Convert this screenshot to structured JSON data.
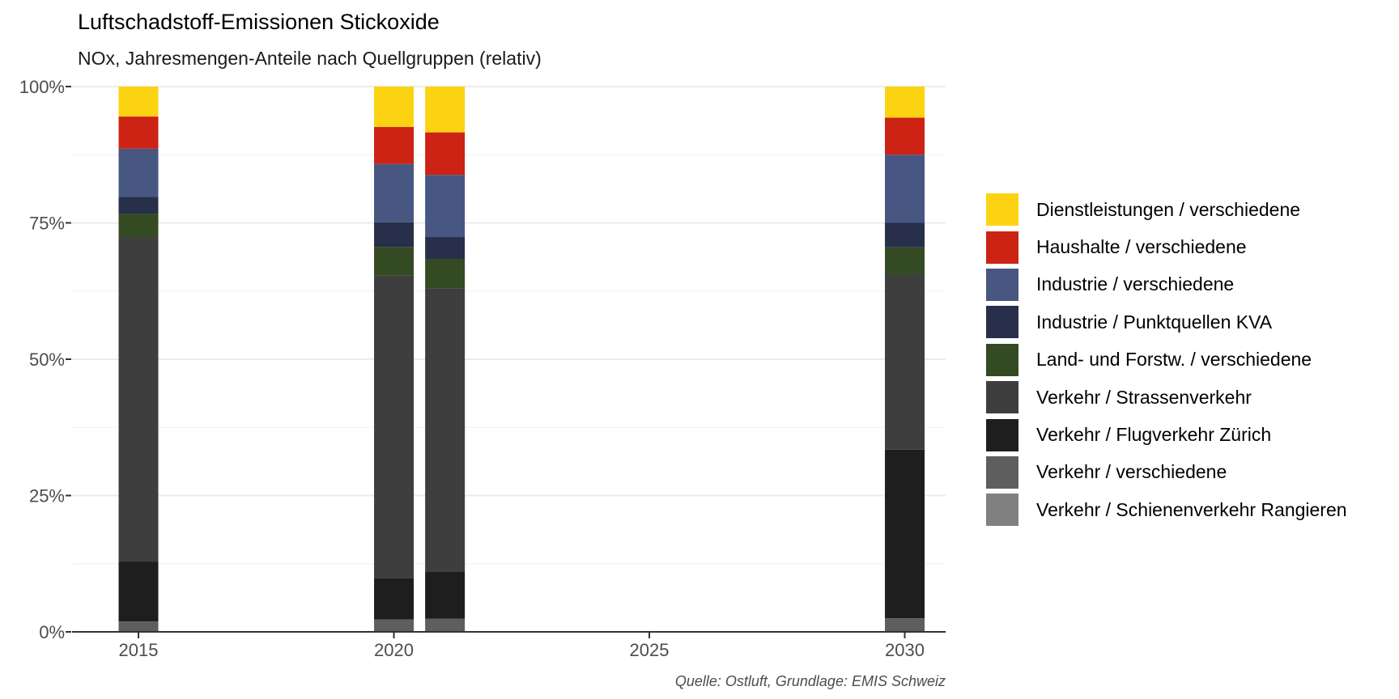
{
  "title": "Luftschadstoff-Emissionen Stickoxide",
  "subtitle": "NOx, Jahresmengen-Anteile nach Quellgruppen (relativ)",
  "caption": "Quelle: Ostluft, Grundlage: EMIS Schweiz",
  "chart_data": {
    "type": "bar",
    "stacked": true,
    "title": "Luftschadstoff-Emissionen Stickoxide",
    "subtitle": "NOx, Jahresmengen-Anteile nach Quellgruppen (relativ)",
    "xlabel": "",
    "ylabel": "",
    "x": [
      2015,
      2020,
      2021,
      2030
    ],
    "xlim": [
      2013.7,
      2030.8
    ],
    "x_ticks": [
      "2015",
      "2020",
      "2025",
      "2030"
    ],
    "x_tick_values": [
      2015,
      2020,
      2025,
      2030
    ],
    "ylim": [
      0,
      100
    ],
    "y_ticks": [
      "0%",
      "25%",
      "50%",
      "75%",
      "100%"
    ],
    "y_tick_values": [
      0,
      25,
      50,
      75,
      100
    ],
    "grid": true,
    "legend_position": "right",
    "series": [
      {
        "name": "Verkehr / Schienenverkehr Rangieren",
        "color": "#808080",
        "values": [
          0.1,
          0.1,
          0.1,
          0.1
        ]
      },
      {
        "name": "Verkehr / verschiedene",
        "color": "#5e5e5e",
        "values": [
          1.8,
          2.2,
          2.3,
          2.4
        ]
      },
      {
        "name": "Verkehr / Flugverkehr Zürich",
        "color": "#1e1e1e",
        "values": [
          11.0,
          7.5,
          8.7,
          30.9
        ]
      },
      {
        "name": "Verkehr / Strassenverkehr",
        "color": "#3e3e3e",
        "values": [
          59.5,
          55.5,
          51.9,
          32.1
        ]
      },
      {
        "name": "Land- und Forstw. / verschiedene",
        "color": "#344a23",
        "values": [
          4.3,
          5.3,
          5.4,
          5.0
        ]
      },
      {
        "name": "Industrie / Punktquellen KVA",
        "color": "#272f4a",
        "values": [
          3.1,
          4.5,
          4.0,
          4.5
        ]
      },
      {
        "name": "Industrie / verschiedene",
        "color": "#475782",
        "values": [
          8.8,
          10.7,
          11.4,
          12.5
        ]
      },
      {
        "name": "Haushalte / verschiedene",
        "color": "#cc2314",
        "values": [
          5.9,
          6.8,
          7.8,
          6.8
        ]
      },
      {
        "name": "Dienstleistungen / verschiedene",
        "color": "#fcd312",
        "values": [
          5.5,
          7.4,
          8.4,
          5.7
        ]
      }
    ]
  }
}
